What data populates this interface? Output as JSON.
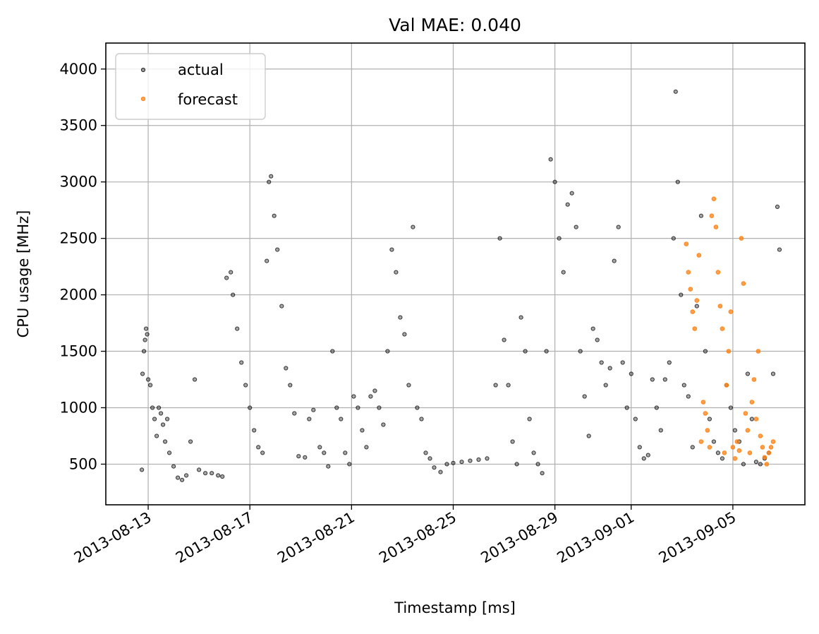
{
  "chart_data": {
    "type": "scatter",
    "title": "Val MAE: 0.040",
    "xlabel": "Timestamp [ms]",
    "ylabel": "CPU usage [MHz]",
    "xlim": [
      "2013-08-11T08:00",
      "2013-09-07T20:00"
    ],
    "ylim": [
      140,
      4230
    ],
    "grid": true,
    "legend_position": "top-left",
    "x_ticks": [
      "2013-08-13",
      "2013-08-17",
      "2013-08-21",
      "2013-08-25",
      "2013-08-29",
      "2013-09-01",
      "2013-09-05"
    ],
    "y_ticks": [
      500,
      1000,
      1500,
      2000,
      2500,
      3000,
      3500,
      4000
    ],
    "colors": {
      "actual": "#000000",
      "forecast": "#ff7f0e"
    },
    "series": [
      {
        "name": "actual",
        "marker": "point",
        "color": "#000000",
        "points": [
          [
            "2013-08-12T18:00",
            450
          ],
          [
            "2013-08-12T18:40",
            1300
          ],
          [
            "2013-08-12T20:00",
            1500
          ],
          [
            "2013-08-12T21:00",
            1600
          ],
          [
            "2013-08-12T22:00",
            1700
          ],
          [
            "2013-08-12T23:00",
            1650
          ],
          [
            "2013-08-13T00:00",
            1250
          ],
          [
            "2013-08-13T02:00",
            1200
          ],
          [
            "2013-08-13T04:00",
            1000
          ],
          [
            "2013-08-13T06:00",
            900
          ],
          [
            "2013-08-13T08:00",
            750
          ],
          [
            "2013-08-13T10:00",
            1000
          ],
          [
            "2013-08-13T12:00",
            950
          ],
          [
            "2013-08-13T14:00",
            850
          ],
          [
            "2013-08-13T16:00",
            700
          ],
          [
            "2013-08-13T18:00",
            900
          ],
          [
            "2013-08-13T20:00",
            600
          ],
          [
            "2013-08-14T00:00",
            480
          ],
          [
            "2013-08-14T04:00",
            380
          ],
          [
            "2013-08-14T08:00",
            360
          ],
          [
            "2013-08-14T12:00",
            400
          ],
          [
            "2013-08-14T16:00",
            700
          ],
          [
            "2013-08-14T20:00",
            1250
          ],
          [
            "2013-08-15T00:00",
            450
          ],
          [
            "2013-08-15T06:00",
            420
          ],
          [
            "2013-08-15T12:00",
            420
          ],
          [
            "2013-08-15T18:00",
            400
          ],
          [
            "2013-08-15T22:00",
            390
          ],
          [
            "2013-08-16T02:00",
            2150
          ],
          [
            "2013-08-16T06:00",
            2200
          ],
          [
            "2013-08-16T08:00",
            2000
          ],
          [
            "2013-08-16T12:00",
            1700
          ],
          [
            "2013-08-16T16:00",
            1400
          ],
          [
            "2013-08-16T20:00",
            1200
          ],
          [
            "2013-08-17T00:00",
            1000
          ],
          [
            "2013-08-17T04:00",
            800
          ],
          [
            "2013-08-17T08:00",
            650
          ],
          [
            "2013-08-17T12:00",
            600
          ],
          [
            "2013-08-17T16:00",
            2300
          ],
          [
            "2013-08-17T18:00",
            3000
          ],
          [
            "2013-08-17T20:00",
            3050
          ],
          [
            "2013-08-17T23:00",
            2700
          ],
          [
            "2013-08-18T02:00",
            2400
          ],
          [
            "2013-08-18T06:00",
            1900
          ],
          [
            "2013-08-18T10:00",
            1350
          ],
          [
            "2013-08-18T14:00",
            1200
          ],
          [
            "2013-08-18T18:00",
            950
          ],
          [
            "2013-08-18T22:00",
            570
          ],
          [
            "2013-08-19T04:00",
            560
          ],
          [
            "2013-08-19T08:00",
            900
          ],
          [
            "2013-08-19T12:00",
            980
          ],
          [
            "2013-08-19T18:00",
            650
          ],
          [
            "2013-08-19T22:00",
            600
          ],
          [
            "2013-08-20T02:00",
            480
          ],
          [
            "2013-08-20T06:00",
            1500
          ],
          [
            "2013-08-20T10:00",
            1000
          ],
          [
            "2013-08-20T14:00",
            900
          ],
          [
            "2013-08-20T18:00",
            600
          ],
          [
            "2013-08-20T22:00",
            500
          ],
          [
            "2013-08-21T02:00",
            1100
          ],
          [
            "2013-08-21T06:00",
            1000
          ],
          [
            "2013-08-21T10:00",
            800
          ],
          [
            "2013-08-21T14:00",
            650
          ],
          [
            "2013-08-21T18:00",
            1100
          ],
          [
            "2013-08-21T22:00",
            1150
          ],
          [
            "2013-08-22T02:00",
            1000
          ],
          [
            "2013-08-22T06:00",
            850
          ],
          [
            "2013-08-22T10:00",
            1500
          ],
          [
            "2013-08-22T14:00",
            2400
          ],
          [
            "2013-08-22T18:00",
            2200
          ],
          [
            "2013-08-22T22:00",
            1800
          ],
          [
            "2013-08-23T02:00",
            1650
          ],
          [
            "2013-08-23T06:00",
            1200
          ],
          [
            "2013-08-23T10:00",
            2600
          ],
          [
            "2013-08-23T14:00",
            1000
          ],
          [
            "2013-08-23T18:00",
            900
          ],
          [
            "2013-08-23T22:00",
            600
          ],
          [
            "2013-08-24T02:00",
            550
          ],
          [
            "2013-08-24T06:00",
            470
          ],
          [
            "2013-08-24T12:00",
            430
          ],
          [
            "2013-08-24T18:00",
            500
          ],
          [
            "2013-08-25T00:00",
            510
          ],
          [
            "2013-08-25T08:00",
            520
          ],
          [
            "2013-08-25T16:00",
            530
          ],
          [
            "2013-08-26T00:00",
            540
          ],
          [
            "2013-08-26T08:00",
            550
          ],
          [
            "2013-08-26T16:00",
            1200
          ],
          [
            "2013-08-26T20:00",
            2500
          ],
          [
            "2013-08-27T00:00",
            1600
          ],
          [
            "2013-08-27T04:00",
            1200
          ],
          [
            "2013-08-27T08:00",
            700
          ],
          [
            "2013-08-27T12:00",
            500
          ],
          [
            "2013-08-27T16:00",
            1800
          ],
          [
            "2013-08-27T20:00",
            1500
          ],
          [
            "2013-08-28T00:00",
            900
          ],
          [
            "2013-08-28T04:00",
            600
          ],
          [
            "2013-08-28T08:00",
            500
          ],
          [
            "2013-08-28T12:00",
            420
          ],
          [
            "2013-08-28T16:00",
            1500
          ],
          [
            "2013-08-28T20:00",
            3200
          ],
          [
            "2013-08-29T00:00",
            3000
          ],
          [
            "2013-08-29T04:00",
            2500
          ],
          [
            "2013-08-29T08:00",
            2200
          ],
          [
            "2013-08-29T12:00",
            2800
          ],
          [
            "2013-08-29T16:00",
            2900
          ],
          [
            "2013-08-29T20:00",
            2600
          ],
          [
            "2013-08-30T00:00",
            1500
          ],
          [
            "2013-08-30T04:00",
            1100
          ],
          [
            "2013-08-30T08:00",
            750
          ],
          [
            "2013-08-30T12:00",
            1700
          ],
          [
            "2013-08-30T16:00",
            1600
          ],
          [
            "2013-08-30T20:00",
            1400
          ],
          [
            "2013-08-31T00:00",
            1200
          ],
          [
            "2013-08-31T04:00",
            1350
          ],
          [
            "2013-08-31T08:00",
            2300
          ],
          [
            "2013-08-31T12:00",
            2600
          ],
          [
            "2013-08-31T16:00",
            1400
          ],
          [
            "2013-08-31T20:00",
            1000
          ],
          [
            "2013-09-01T00:00",
            1300
          ],
          [
            "2013-09-01T04:00",
            900
          ],
          [
            "2013-09-01T08:00",
            650
          ],
          [
            "2013-09-01T12:00",
            550
          ],
          [
            "2013-09-01T16:00",
            580
          ],
          [
            "2013-09-01T20:00",
            1250
          ],
          [
            "2013-09-02T00:00",
            1000
          ],
          [
            "2013-09-02T04:00",
            800
          ],
          [
            "2013-09-02T08:00",
            1250
          ],
          [
            "2013-09-02T12:00",
            1400
          ],
          [
            "2013-09-02T16:00",
            2500
          ],
          [
            "2013-09-02T18:00",
            3800
          ],
          [
            "2013-09-02T20:00",
            3000
          ],
          [
            "2013-09-02T23:00",
            2000
          ],
          [
            "2013-09-03T02:00",
            1200
          ],
          [
            "2013-09-03T06:00",
            1100
          ],
          [
            "2013-09-03T10:00",
            650
          ],
          [
            "2013-09-03T14:00",
            1900
          ],
          [
            "2013-09-03T18:00",
            2700
          ],
          [
            "2013-09-03T22:00",
            1500
          ],
          [
            "2013-09-04T02:00",
            900
          ],
          [
            "2013-09-04T06:00",
            700
          ],
          [
            "2013-09-04T10:00",
            600
          ],
          [
            "2013-09-04T14:00",
            550
          ],
          [
            "2013-09-04T18:00",
            1200
          ],
          [
            "2013-09-04T22:00",
            1000
          ],
          [
            "2013-09-05T02:00",
            800
          ],
          [
            "2013-09-05T06:00",
            700
          ],
          [
            "2013-09-05T10:00",
            500
          ],
          [
            "2013-09-05T14:00",
            1300
          ],
          [
            "2013-09-05T18:00",
            900
          ],
          [
            "2013-09-05T22:00",
            520
          ],
          [
            "2013-09-06T02:00",
            500
          ],
          [
            "2013-09-06T06:00",
            550
          ],
          [
            "2013-09-06T10:00",
            600
          ],
          [
            "2013-09-06T14:00",
            1300
          ],
          [
            "2013-09-06T18:00",
            2780
          ],
          [
            "2013-09-06T20:00",
            2400
          ]
        ]
      },
      {
        "name": "forecast",
        "marker": "point",
        "color": "#ff7f0e",
        "points": [
          [
            "2013-09-03T04:00",
            2450
          ],
          [
            "2013-09-03T06:00",
            2200
          ],
          [
            "2013-09-03T08:00",
            2050
          ],
          [
            "2013-09-03T10:00",
            1850
          ],
          [
            "2013-09-03T12:00",
            1700
          ],
          [
            "2013-09-03T14:00",
            1950
          ],
          [
            "2013-09-03T16:00",
            2350
          ],
          [
            "2013-09-03T18:00",
            700
          ],
          [
            "2013-09-03T20:00",
            1050
          ],
          [
            "2013-09-03T22:00",
            950
          ],
          [
            "2013-09-04T00:00",
            800
          ],
          [
            "2013-09-04T02:00",
            650
          ],
          [
            "2013-09-04T04:00",
            2700
          ],
          [
            "2013-09-04T06:00",
            2850
          ],
          [
            "2013-09-04T08:00",
            2600
          ],
          [
            "2013-09-04T10:00",
            2200
          ],
          [
            "2013-09-04T12:00",
            1900
          ],
          [
            "2013-09-04T14:00",
            1700
          ],
          [
            "2013-09-04T16:00",
            600
          ],
          [
            "2013-09-04T18:00",
            1200
          ],
          [
            "2013-09-04T20:00",
            1500
          ],
          [
            "2013-09-04T22:00",
            1850
          ],
          [
            "2013-09-05T00:00",
            650
          ],
          [
            "2013-09-05T02:00",
            550
          ],
          [
            "2013-09-05T04:00",
            700
          ],
          [
            "2013-09-05T06:00",
            620
          ],
          [
            "2013-09-05T08:00",
            2500
          ],
          [
            "2013-09-05T10:00",
            2100
          ],
          [
            "2013-09-05T12:00",
            950
          ],
          [
            "2013-09-05T14:00",
            800
          ],
          [
            "2013-09-05T16:00",
            600
          ],
          [
            "2013-09-05T18:00",
            1050
          ],
          [
            "2013-09-05T20:00",
            1250
          ],
          [
            "2013-09-05T22:00",
            900
          ],
          [
            "2013-09-06T00:00",
            1500
          ],
          [
            "2013-09-06T02:00",
            750
          ],
          [
            "2013-09-06T04:00",
            650
          ],
          [
            "2013-09-06T06:00",
            560
          ],
          [
            "2013-09-06T08:00",
            500
          ],
          [
            "2013-09-06T10:00",
            600
          ],
          [
            "2013-09-06T12:00",
            650
          ],
          [
            "2013-09-06T14:00",
            700
          ]
        ]
      }
    ]
  }
}
